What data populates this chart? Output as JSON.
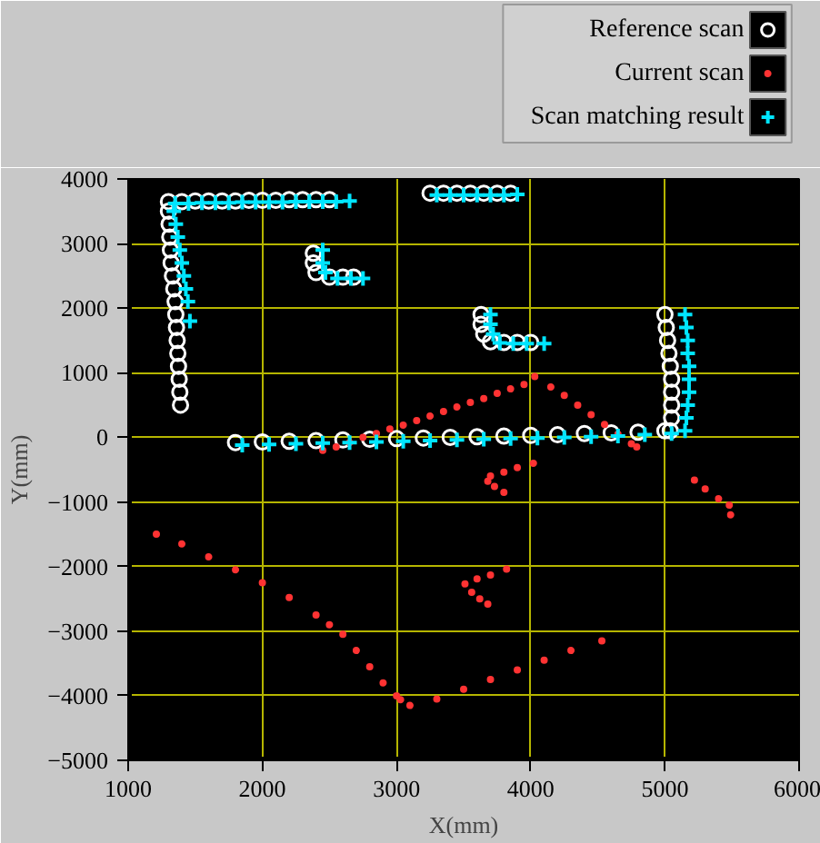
{
  "chart_data": {
    "type": "scatter",
    "xlabel": "X(mm)",
    "ylabel": "Y(mm)",
    "xlim": [
      1000,
      6000
    ],
    "ylim": [
      -5000,
      4000
    ],
    "xticks": [
      1000,
      2000,
      3000,
      4000,
      5000,
      6000
    ],
    "yticks": [
      -5000,
      -4000,
      -3000,
      -2000,
      -1000,
      0,
      1000,
      2000,
      3000,
      4000
    ],
    "grid": true,
    "legend": "top right",
    "series": [
      {
        "name": "Reference scan",
        "color": "#ffffff",
        "marker": "circle",
        "x": [
          1300,
          1400,
          1500,
          1600,
          1700,
          1800,
          1900,
          2000,
          2100,
          2200,
          2300,
          2400,
          2500,
          1300,
          1305,
          1310,
          1315,
          1320,
          1330,
          1340,
          1350,
          1355,
          1360,
          1365,
          1370,
          1375,
          1380,
          1385,
          1390,
          1800,
          2000,
          2200,
          2400,
          2600,
          2800,
          3000,
          3200,
          3400,
          3600,
          3800,
          4000,
          4200,
          4400,
          4600,
          4800,
          5000,
          2380,
          2380,
          2400,
          2500,
          2600,
          2680,
          3250,
          3350,
          3450,
          3550,
          3650,
          3750,
          3850,
          3630,
          3630,
          3650,
          3700,
          3800,
          3900,
          4000,
          5000,
          5010,
          5020,
          5030,
          5040,
          5050,
          5050,
          5050,
          5050,
          5040
        ],
        "values": [
          3650,
          3650,
          3660,
          3660,
          3660,
          3660,
          3670,
          3670,
          3670,
          3680,
          3680,
          3680,
          3680,
          3500,
          3300,
          3100,
          2900,
          2700,
          2500,
          2300,
          2100,
          1900,
          1700,
          1500,
          1300,
          1100,
          900,
          700,
          500,
          -80,
          -70,
          -60,
          -50,
          -40,
          -30,
          -20,
          -10,
          0,
          10,
          20,
          30,
          40,
          60,
          70,
          80,
          100,
          2850,
          2700,
          2550,
          2480,
          2480,
          2480,
          3780,
          3780,
          3780,
          3780,
          3780,
          3780,
          3780,
          1900,
          1750,
          1600,
          1480,
          1470,
          1470,
          1470,
          1900,
          1700,
          1500,
          1300,
          1100,
          900,
          700,
          500,
          300,
          100
        ]
      },
      {
        "name": "Current scan",
        "color": "#ff3333",
        "marker": "circle",
        "x": [
          2450,
          2550,
          2650,
          2750,
          2850,
          2950,
          3050,
          3150,
          3250,
          3350,
          3450,
          3550,
          3650,
          3750,
          3850,
          3950,
          4030,
          4150,
          4250,
          4350,
          4450,
          4550,
          4650,
          4750,
          4790,
          4020,
          3900,
          3800,
          3700,
          3680,
          3730,
          3800,
          5220,
          5300,
          5400,
          5480,
          5490,
          3820,
          3700,
          3600,
          3510,
          3560,
          3620,
          3680,
          1210,
          1400,
          1600,
          1800,
          2000,
          2200,
          2400,
          2500,
          2600,
          2700,
          2800,
          2900,
          3000,
          3030,
          3100,
          3300,
          3500,
          3700,
          3900,
          4100,
          4300,
          4530
        ],
        "values": [
          -200,
          -150,
          -80,
          0,
          60,
          130,
          190,
          260,
          330,
          400,
          470,
          540,
          600,
          680,
          750,
          820,
          940,
          780,
          650,
          500,
          350,
          200,
          50,
          -100,
          -150,
          -400,
          -470,
          -540,
          -600,
          -680,
          -760,
          -850,
          -660,
          -800,
          -950,
          -1050,
          -1200,
          -2040,
          -2130,
          -2190,
          -2270,
          -2400,
          -2500,
          -2580,
          -1500,
          -1650,
          -1850,
          -2050,
          -2250,
          -2480,
          -2750,
          -2900,
          -3050,
          -3300,
          -3550,
          -3800,
          -4000,
          -4060,
          -4150,
          -4050,
          -3900,
          -3750,
          -3600,
          -3450,
          -3300,
          -3150
        ]
      },
      {
        "name": "Scan matching result",
        "color": "#00e5ff",
        "marker": "cross",
        "x": [
          1350,
          1450,
          1550,
          1650,
          1750,
          1850,
          1950,
          2050,
          2150,
          2250,
          2350,
          2450,
          2550,
          2650,
          1340,
          1355,
          1370,
          1385,
          1400,
          1415,
          1430,
          1445,
          1460,
          1850,
          2050,
          2250,
          2450,
          2650,
          2850,
          3050,
          3250,
          3450,
          3650,
          3850,
          4050,
          4250,
          4450,
          4650,
          4850,
          5050,
          2450,
          2450,
          2470,
          2560,
          2660,
          2750,
          3300,
          3400,
          3500,
          3600,
          3700,
          3800,
          3900,
          3700,
          3700,
          3720,
          3770,
          3870,
          3970,
          4100,
          5150,
          5160,
          5170,
          5170,
          5180,
          5180,
          5180,
          5170,
          5160,
          5150
        ],
        "values": [
          3620,
          3620,
          3630,
          3630,
          3630,
          3640,
          3640,
          3640,
          3640,
          3650,
          3650,
          3650,
          3650,
          3660,
          3500,
          3300,
          3100,
          2900,
          2700,
          2500,
          2300,
          2100,
          1800,
          -120,
          -110,
          -100,
          -90,
          -80,
          -70,
          -60,
          -50,
          -40,
          -30,
          -20,
          -10,
          0,
          10,
          20,
          40,
          60,
          2900,
          2700,
          2550,
          2460,
          2460,
          2460,
          3750,
          3750,
          3750,
          3750,
          3750,
          3750,
          3760,
          1900,
          1750,
          1600,
          1460,
          1450,
          1450,
          1450,
          1900,
          1700,
          1500,
          1300,
          1100,
          900,
          700,
          500,
          300,
          100
        ]
      }
    ]
  }
}
